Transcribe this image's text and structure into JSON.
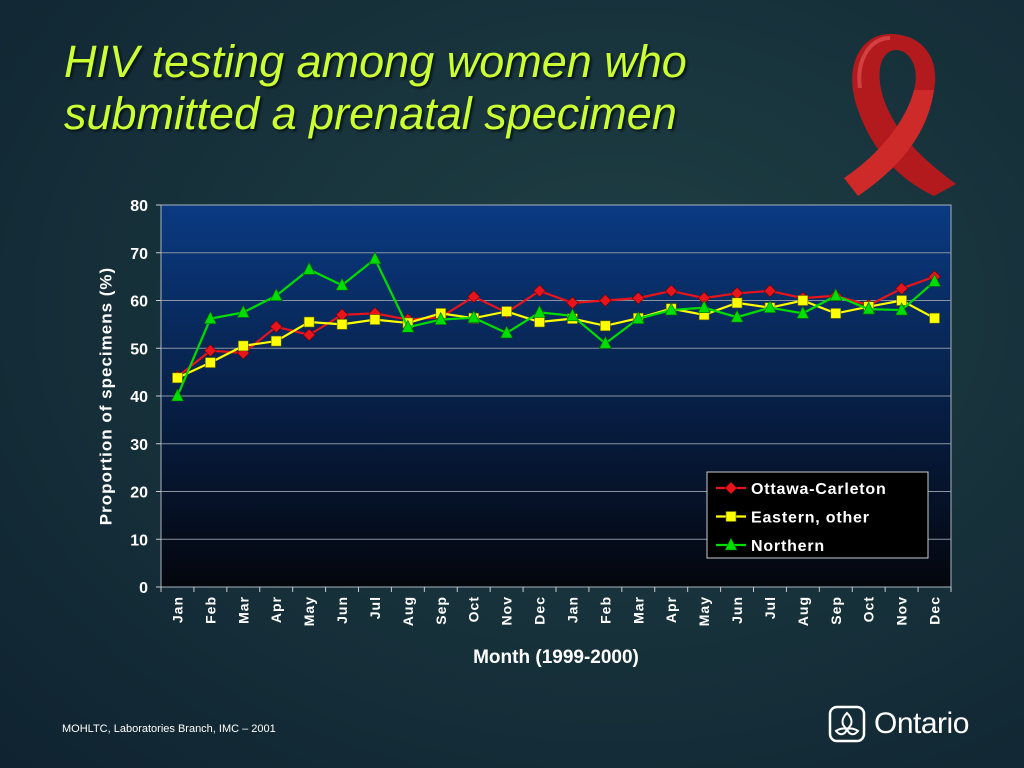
{
  "slide": {
    "title_line1": "HIV testing among women who",
    "title_line2": "submitted a prenatal specimen",
    "footer": "MOHLTC, Laboratories Branch, IMC – 2001",
    "brand": "Ontario",
    "ribbon_icon": "red-awareness-ribbon-icon",
    "brand_icon": "ontario-trillium-logo-icon"
  },
  "chart_data": {
    "type": "line",
    "title": "",
    "xlabel": "Month (1999-2000)",
    "ylabel": "Proportion of specimens (%)",
    "ylim": [
      0,
      80
    ],
    "yticks": [
      0,
      10,
      20,
      30,
      40,
      50,
      60,
      70,
      80
    ],
    "grid": true,
    "legend_position": "bottom-right",
    "categories": [
      "Jan",
      "Feb",
      "Mar",
      "Apr",
      "May",
      "Jun",
      "Jul",
      "Aug",
      "Sep",
      "Oct",
      "Nov",
      "Dec",
      "Jan",
      "Feb",
      "Mar",
      "Apr",
      "May",
      "Jun",
      "Jul",
      "Aug",
      "Sep",
      "Oct",
      "Nov",
      "Dec"
    ],
    "series": [
      {
        "name": "Ottawa-Carleton",
        "color": "#e8141c",
        "marker": "diamond",
        "values": [
          44,
          49.5,
          49,
          54.5,
          52.8,
          57,
          57.3,
          56,
          56.5,
          60.8,
          57.5,
          62,
          59.5,
          60,
          60.5,
          62,
          60.5,
          61.5,
          62,
          60.5,
          61,
          59,
          62.5,
          65
        ]
      },
      {
        "name": "Eastern, other",
        "color": "#ffff00",
        "marker": "square",
        "values": [
          43.8,
          47,
          50.5,
          51.5,
          55.5,
          55,
          56,
          55.3,
          57.3,
          56.3,
          57.7,
          55.5,
          56.2,
          54.7,
          56.3,
          58.3,
          57,
          59.5,
          58.5,
          60,
          57.3,
          58.7,
          60,
          56.3
        ]
      },
      {
        "name": "Northern",
        "color": "#00dd00",
        "marker": "triangle",
        "values": [
          40,
          56.2,
          57.5,
          61,
          66.5,
          63.2,
          68.7,
          54.4,
          56,
          56.4,
          53.2,
          57.5,
          56.8,
          51,
          56.2,
          58,
          58.5,
          56.5,
          58.5,
          57.3,
          61,
          58.2,
          58,
          64
        ]
      }
    ]
  }
}
